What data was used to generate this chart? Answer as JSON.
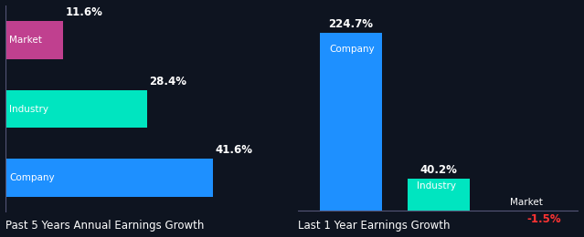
{
  "background_color": "#0e1420",
  "chart1": {
    "title": "Past 5 Years Annual Earnings Growth",
    "categories": [
      "Company",
      "Industry",
      "Market"
    ],
    "values": [
      41.6,
      28.4,
      11.6
    ],
    "colors": [
      "#1e90ff",
      "#00e5c0",
      "#c0408f"
    ],
    "value_colors": [
      "#ffffff",
      "#ffffff",
      "#ffffff"
    ],
    "is_horizontal": true
  },
  "chart2": {
    "title": "Last 1 Year Earnings Growth",
    "categories": [
      "Company",
      "Industry",
      "Market"
    ],
    "values": [
      224.7,
      40.2,
      -1.5
    ],
    "colors": [
      "#1e90ff",
      "#00e5c0",
      "#c0408f"
    ],
    "value_colors": [
      "#ffffff",
      "#ffffff",
      "#ff3333"
    ],
    "is_horizontal": false
  },
  "title_fontsize": 8.5,
  "cat_label_fontsize": 7.5,
  "value_fontsize": 8.5,
  "text_color": "#ffffff",
  "bar_height": 0.55,
  "bar_width": 0.7
}
